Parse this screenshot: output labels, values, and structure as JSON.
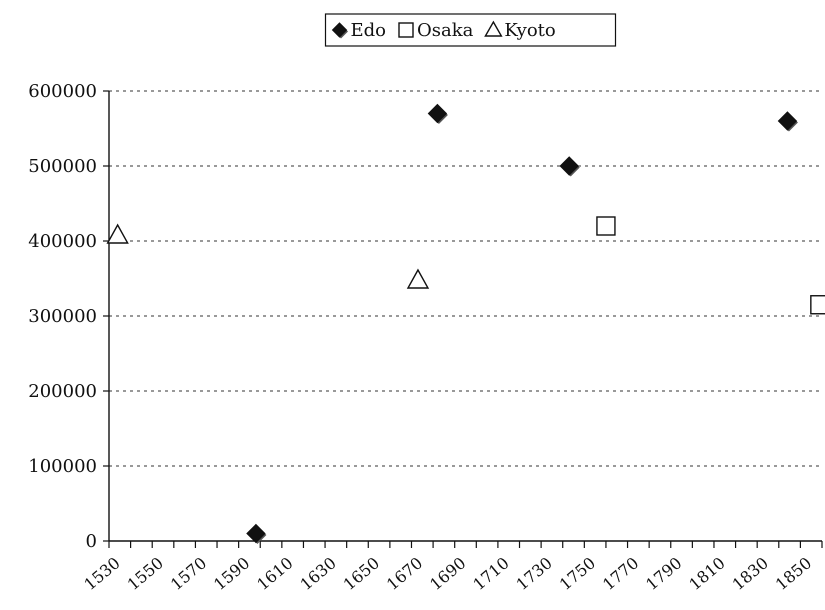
{
  "chart_data": {
    "type": "scatter",
    "title": "",
    "xlabel": "",
    "ylabel": "",
    "xlim": [
      1530,
      1860
    ],
    "ylim": [
      0,
      600000
    ],
    "x_ticks": [
      1530,
      1550,
      1570,
      1590,
      1610,
      1630,
      1650,
      1670,
      1690,
      1710,
      1730,
      1750,
      1770,
      1790,
      1810,
      1830,
      1850
    ],
    "y_ticks": [
      0,
      100000,
      200000,
      300000,
      400000,
      500000,
      600000
    ],
    "grid": "horizontal-dashed",
    "legend_position": "top-center",
    "series": [
      {
        "name": "Edo",
        "marker": "filled-diamond",
        "color": "#111111",
        "points": [
          {
            "x": 1598,
            "y": 10000
          },
          {
            "x": 1682,
            "y": 570000
          },
          {
            "x": 1743,
            "y": 500000
          },
          {
            "x": 1844,
            "y": 560000
          }
        ]
      },
      {
        "name": "Osaka",
        "marker": "open-square",
        "color": "#111111",
        "points": [
          {
            "x": 1760,
            "y": 420000
          },
          {
            "x": 1859,
            "y": 315000
          }
        ]
      },
      {
        "name": "Kyoto",
        "marker": "open-triangle",
        "color": "#111111",
        "points": [
          {
            "x": 1534,
            "y": 408000
          },
          {
            "x": 1673,
            "y": 348000
          }
        ]
      }
    ]
  }
}
